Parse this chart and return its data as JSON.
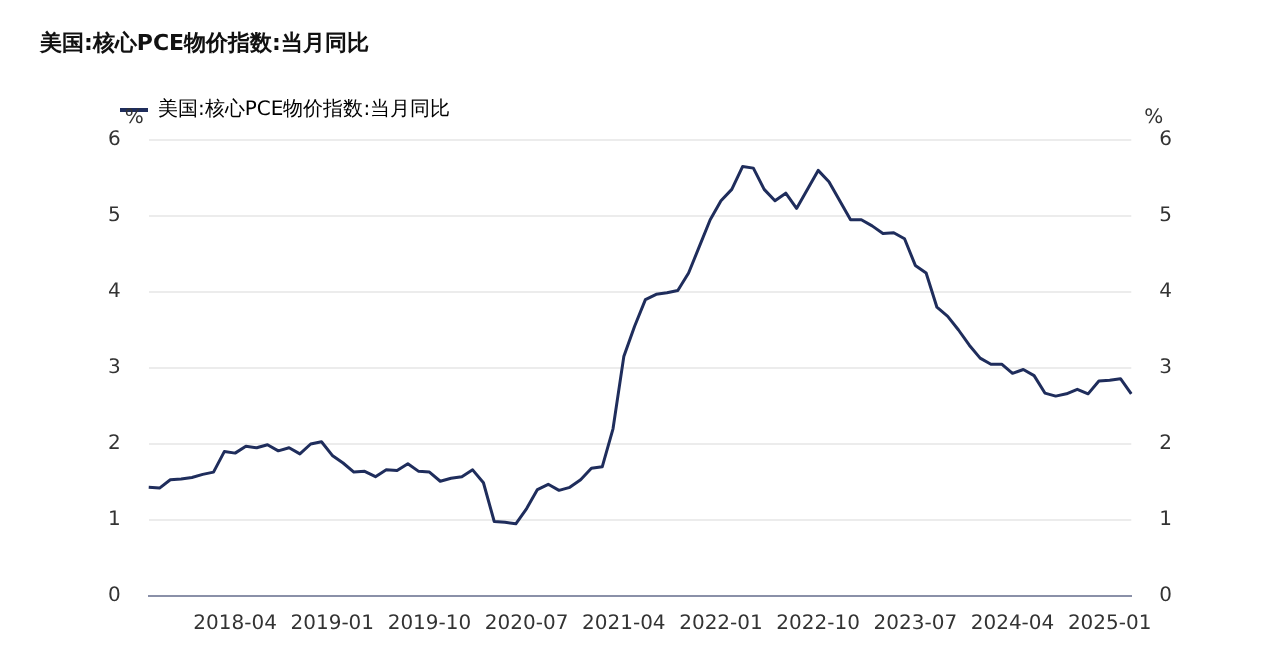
{
  "chart_data": {
    "type": "line",
    "title": "美国:核心PCE物价指数:当月同比",
    "ylabel": "%",
    "y2label": "%",
    "categories": [
      null,
      null,
      null,
      null,
      null,
      null,
      null,
      null,
      "2018-04",
      null,
      null,
      null,
      null,
      null,
      null,
      null,
      null,
      "2019-01",
      null,
      null,
      null,
      null,
      null,
      null,
      null,
      null,
      "2019-10",
      null,
      null,
      null,
      null,
      null,
      null,
      null,
      null,
      "2020-07",
      null,
      null,
      null,
      null,
      null,
      null,
      null,
      null,
      "2021-04",
      null,
      null,
      null,
      null,
      null,
      null,
      null,
      null,
      "2022-01",
      null,
      null,
      null,
      null,
      null,
      null,
      null,
      null,
      "2022-10",
      null,
      null,
      null,
      null,
      null,
      null,
      null,
      null,
      "2023-07",
      null,
      null,
      null,
      null,
      null,
      null,
      null,
      null,
      "2024-04",
      null,
      null,
      null,
      null,
      null,
      null,
      null,
      null,
      "2025-01",
      null,
      null
    ],
    "series": [
      {
        "name": "美国:核心PCE物价指数:当月同比",
        "color": "#1f2d5c",
        "values": [
          1.43,
          1.42,
          1.53,
          1.54,
          1.56,
          1.6,
          1.63,
          1.9,
          1.88,
          1.97,
          1.95,
          1.99,
          1.91,
          1.95,
          1.87,
          2.0,
          2.03,
          1.85,
          1.75,
          1.63,
          1.64,
          1.57,
          1.66,
          1.65,
          1.74,
          1.64,
          1.63,
          1.51,
          1.55,
          1.57,
          1.66,
          1.49,
          0.98,
          0.97,
          0.95,
          1.15,
          1.4,
          1.47,
          1.39,
          1.43,
          1.53,
          1.68,
          1.7,
          2.2,
          3.15,
          3.55,
          3.9,
          3.97,
          3.99,
          4.02,
          4.25,
          4.6,
          4.95,
          5.2,
          5.35,
          5.65,
          5.63,
          5.35,
          5.2,
          5.3,
          5.1,
          5.35,
          5.6,
          5.45,
          5.2,
          4.95,
          4.95,
          4.87,
          4.77,
          4.78,
          4.7,
          4.35,
          4.25,
          3.8,
          3.68,
          3.5,
          3.3,
          3.13,
          3.05,
          3.05,
          2.93,
          2.98,
          2.9,
          2.67,
          2.63,
          2.66,
          2.72,
          2.66,
          2.83,
          2.84,
          2.86,
          2.66
        ]
      }
    ],
    "ylim": [
      0,
      6
    ],
    "yticks": [
      0,
      1,
      2,
      3,
      4,
      5,
      6
    ],
    "y2lim": [
      0,
      6
    ],
    "y2ticks": [
      0,
      1,
      2,
      3,
      4,
      5,
      6
    ],
    "grid": "y",
    "legend": "top left",
    "marker": "none",
    "line_style": "solid"
  }
}
